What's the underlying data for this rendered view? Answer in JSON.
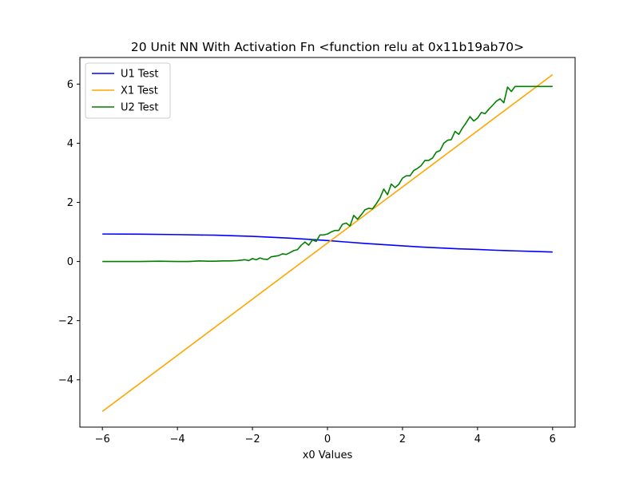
{
  "chart_data": {
    "type": "line",
    "title": "20 Unit NN With Activation Fn <function relu at 0x11b19ab70>",
    "xlabel": "x0 Values",
    "ylabel": "",
    "xlim": [
      -6.6,
      6.6
    ],
    "ylim": [
      -5.6,
      6.9
    ],
    "xticks": [
      -6,
      -4,
      -2,
      0,
      2,
      4,
      6
    ],
    "yticks": [
      -4,
      -2,
      0,
      2,
      4,
      6
    ],
    "grid": false,
    "legend_position": "top-left",
    "series": [
      {
        "name": "U1 Test",
        "color": "#0000ff",
        "x": [
          -6,
          -5,
          -4,
          -3,
          -2,
          -1.5,
          -1,
          -0.5,
          0,
          0.5,
          1,
          1.5,
          2,
          2.5,
          3,
          3.5,
          4,
          4.5,
          5,
          5.5,
          6
        ],
        "y": [
          0.93,
          0.925,
          0.91,
          0.89,
          0.85,
          0.82,
          0.79,
          0.75,
          0.71,
          0.66,
          0.61,
          0.57,
          0.53,
          0.49,
          0.46,
          0.43,
          0.41,
          0.38,
          0.36,
          0.34,
          0.32
        ]
      },
      {
        "name": "X1 Test",
        "color": "#ffa500",
        "x": [
          -6,
          6
        ],
        "y": [
          -5.07,
          6.32
        ]
      },
      {
        "name": "U2 Test",
        "color": "#008000",
        "x": [
          -6,
          -5.5,
          -5,
          -4.5,
          -4,
          -3.7,
          -3.4,
          -3.2,
          -3.0,
          -2.8,
          -2.6,
          -2.4,
          -2.2,
          -2.1,
          -2.0,
          -1.9,
          -1.8,
          -1.7,
          -1.6,
          -1.5,
          -1.4,
          -1.3,
          -1.2,
          -1.1,
          -1.0,
          -0.9,
          -0.8,
          -0.7,
          -0.6,
          -0.5,
          -0.4,
          -0.3,
          -0.2,
          -0.1,
          0.0,
          0.1,
          0.2,
          0.3,
          0.4,
          0.5,
          0.6,
          0.7,
          0.8,
          0.9,
          1.0,
          1.1,
          1.2,
          1.3,
          1.4,
          1.5,
          1.6,
          1.7,
          1.8,
          1.9,
          2.0,
          2.1,
          2.2,
          2.3,
          2.4,
          2.5,
          2.6,
          2.7,
          2.8,
          2.9,
          3.0,
          3.1,
          3.2,
          3.3,
          3.4,
          3.5,
          3.6,
          3.7,
          3.8,
          3.9,
          4.0,
          4.1,
          4.2,
          4.3,
          4.4,
          4.5,
          4.6,
          4.7,
          4.8,
          4.9,
          5.0,
          5.1,
          5.2,
          5.3,
          5.4,
          5.5,
          5.6,
          5.7,
          5.8,
          5.9,
          6.0
        ],
        "y": [
          0.0,
          0.0,
          0.0,
          0.01,
          0.0,
          0.0,
          0.02,
          0.01,
          0.01,
          0.02,
          0.02,
          0.03,
          0.06,
          0.03,
          0.1,
          0.06,
          0.12,
          0.08,
          0.07,
          0.16,
          0.18,
          0.2,
          0.26,
          0.24,
          0.3,
          0.37,
          0.4,
          0.55,
          0.66,
          0.55,
          0.73,
          0.68,
          0.9,
          0.9,
          0.93,
          1.0,
          1.05,
          1.05,
          1.26,
          1.3,
          1.2,
          1.56,
          1.43,
          1.58,
          1.75,
          1.8,
          1.78,
          1.95,
          2.15,
          2.45,
          2.26,
          2.62,
          2.5,
          2.61,
          2.82,
          2.9,
          2.9,
          3.08,
          3.15,
          3.25,
          3.42,
          3.42,
          3.5,
          3.7,
          3.75,
          4.0,
          4.1,
          4.12,
          4.4,
          4.3,
          4.52,
          4.7,
          4.9,
          4.75,
          4.85,
          5.04,
          5.0,
          5.15,
          5.28,
          5.42,
          5.5,
          5.37,
          5.9,
          5.75,
          5.92,
          5.92,
          5.92,
          5.92,
          5.92,
          5.92,
          5.92,
          5.92,
          5.92,
          5.92,
          5.92
        ]
      }
    ]
  }
}
